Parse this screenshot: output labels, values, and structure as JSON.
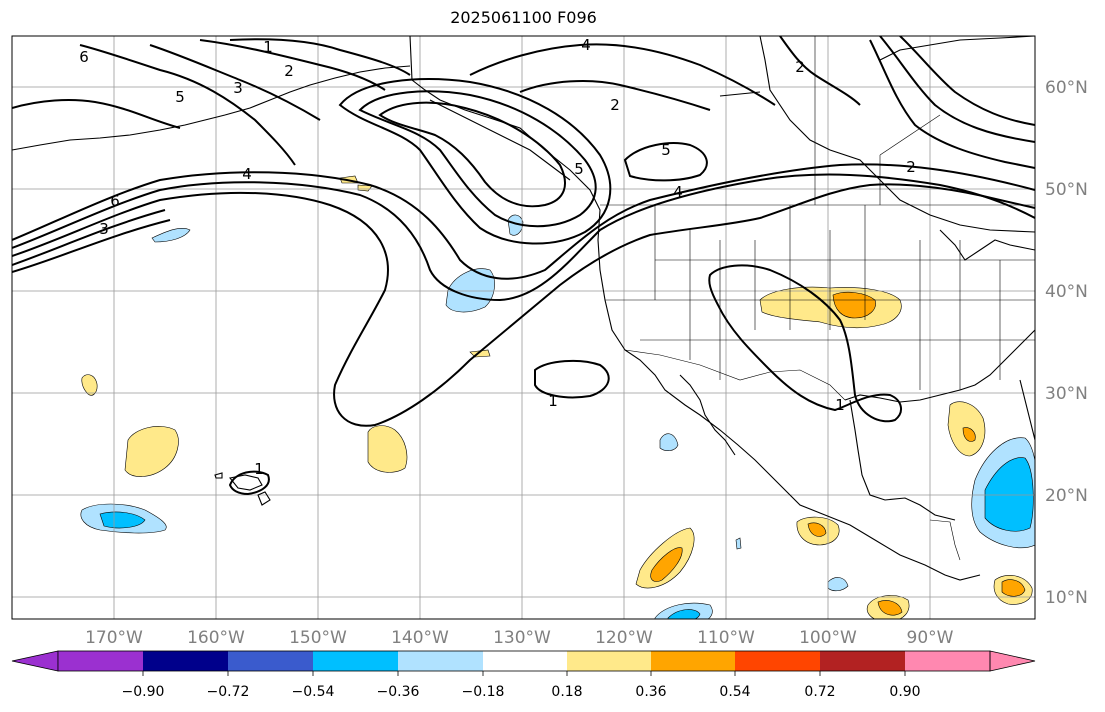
{
  "title": "2025061100 F096",
  "map": {
    "lon_ticks": [
      "170°W",
      "160°W",
      "150°W",
      "140°W",
      "130°W",
      "120°W",
      "110°W",
      "100°W",
      "90°W"
    ],
    "lat_ticks": [
      "60°N",
      "50°N",
      "40°N",
      "30°N",
      "20°N",
      "10°N"
    ],
    "grid": true,
    "contour_labels": [
      "6",
      "1",
      "4",
      "2",
      "3",
      "5",
      "5",
      "2",
      "2",
      "5",
      "4",
      "2",
      "6",
      "3",
      "4",
      "1",
      "1",
      "1"
    ]
  },
  "colorbar": {
    "levels": [
      "−0.90",
      "−0.72",
      "−0.54",
      "−0.36",
      "−0.18",
      "0.18",
      "0.36",
      "0.54",
      "0.72",
      "0.90"
    ],
    "colors": [
      "#9b30d0",
      "#00008b",
      "#3a5bcd",
      "#00bfff",
      "#b0e2ff",
      "#ffffff",
      "#ffe98a",
      "#ffa500",
      "#ff4500",
      "#b22222",
      "#ff88b0"
    ]
  }
}
